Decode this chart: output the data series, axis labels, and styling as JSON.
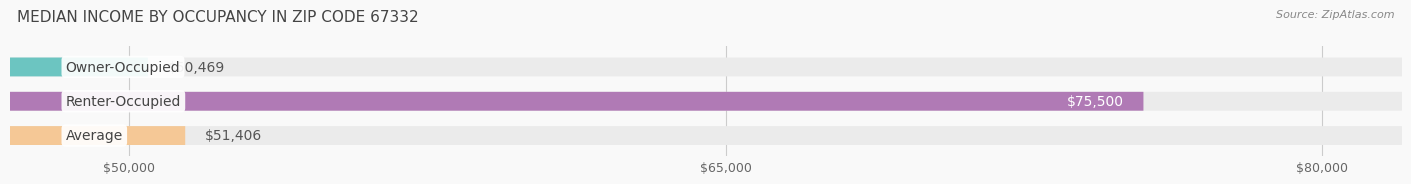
{
  "title": "MEDIAN INCOME BY OCCUPANCY IN ZIP CODE 67332",
  "source": "Source: ZipAtlas.com",
  "categories": [
    "Owner-Occupied",
    "Renter-Occupied",
    "Average"
  ],
  "values": [
    50469,
    75500,
    51406
  ],
  "labels": [
    "$50,469",
    "$75,500",
    "$51,406"
  ],
  "bar_colors": [
    "#6cc5c1",
    "#b07ab5",
    "#f5c896"
  ],
  "bar_bg_color": "#ebebeb",
  "label_bg_color": "#ffffff",
  "xlim_min": 47000,
  "xlim_max": 82000,
  "xticks": [
    50000,
    65000,
    80000
  ],
  "xtick_labels": [
    "$50,000",
    "$65,000",
    "$80,000"
  ],
  "bar_height": 0.55,
  "title_fontsize": 11,
  "tick_fontsize": 9,
  "label_fontsize": 10,
  "cat_fontsize": 10,
  "background_color": "#f9f9f9",
  "grid_color": "#cccccc"
}
